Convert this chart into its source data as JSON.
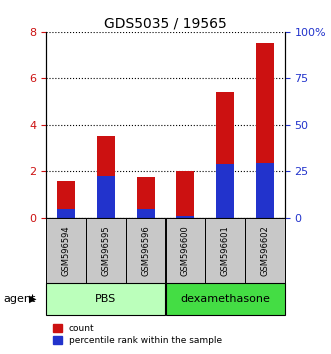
{
  "title": "GDS5035 / 19565",
  "samples": [
    "GSM596594",
    "GSM596595",
    "GSM596596",
    "GSM596600",
    "GSM596601",
    "GSM596602"
  ],
  "count_values": [
    1.6,
    3.5,
    1.75,
    2.0,
    5.4,
    7.5
  ],
  "percentile_values": [
    4.5,
    22.5,
    4.5,
    1.0,
    29.0,
    29.5
  ],
  "groups": [
    {
      "label": "PBS",
      "indices": [
        0,
        1,
        2
      ],
      "color": "#bbffbb"
    },
    {
      "label": "dexamethasone",
      "indices": [
        3,
        4,
        5
      ],
      "color": "#44dd44"
    }
  ],
  "bar_color_count": "#cc1111",
  "bar_color_percentile": "#2233cc",
  "ylim_left": [
    0,
    8
  ],
  "ylim_right": [
    0,
    100
  ],
  "yticks_left": [
    0,
    2,
    4,
    6,
    8
  ],
  "ytick_labels_left": [
    "0",
    "2",
    "4",
    "6",
    "8"
  ],
  "yticks_right": [
    0,
    25,
    50,
    75,
    100
  ],
  "ytick_labels_right": [
    "0",
    "25",
    "50",
    "75",
    "100%"
  ],
  "agent_label": "agent",
  "legend_count": "count",
  "legend_percentile": "percentile rank within the sample",
  "ticklabel_area_color": "#c8c8c8",
  "group_label_fontsize": 8,
  "title_fontsize": 10
}
